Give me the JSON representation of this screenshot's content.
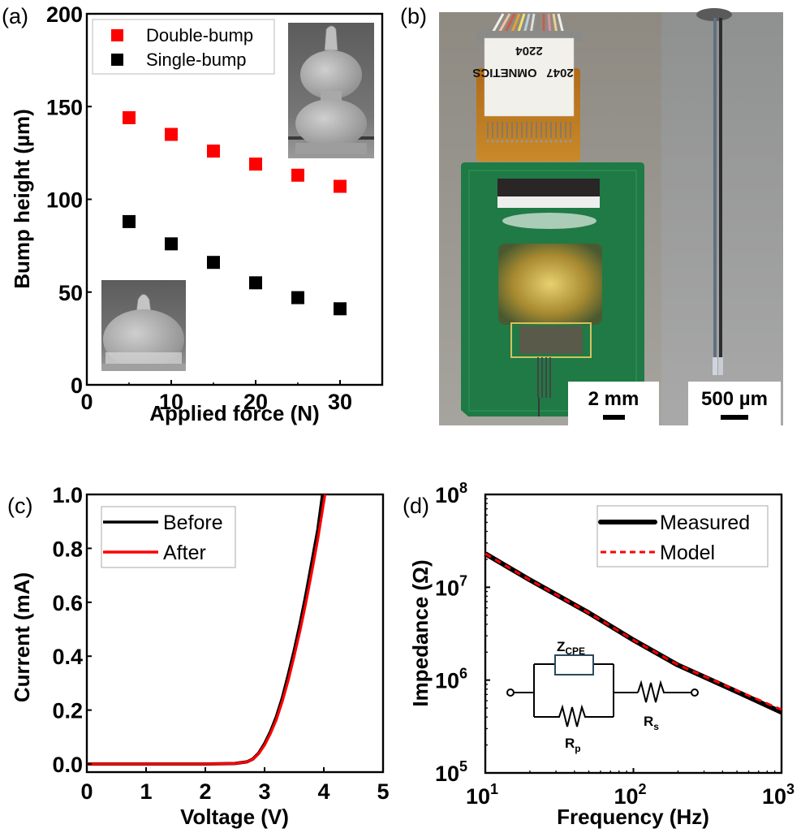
{
  "figure": {
    "panels": {
      "a": {
        "label": "(a)"
      },
      "b": {
        "label": "(b)"
      },
      "c": {
        "label": "(c)"
      },
      "d": {
        "label": "(d)"
      }
    }
  },
  "chart_data": [
    {
      "panel": "(a)",
      "type": "scatter",
      "title": "",
      "xlabel": "Applied force (N)",
      "ylabel": "Bump height (µm)",
      "xlim": [
        0,
        35
      ],
      "ylim": [
        0,
        200
      ],
      "xticks": [
        0,
        10,
        20,
        30
      ],
      "yticks": [
        0,
        50,
        100,
        150,
        200
      ],
      "grid": false,
      "legend_position": "upper left",
      "series": [
        {
          "name": "Double-bump",
          "color": "#ff0000",
          "marker": "square",
          "x": [
            5,
            10,
            15,
            20,
            25,
            30
          ],
          "y": [
            144,
            135,
            126,
            119,
            113,
            107
          ]
        },
        {
          "name": "Single-bump",
          "color": "#000000",
          "marker": "square",
          "x": [
            5,
            10,
            15,
            20,
            25,
            30
          ],
          "y": [
            88,
            76,
            66,
            55,
            47,
            41
          ]
        }
      ],
      "insets": [
        "SEM image of double-bump (upper right)",
        "SEM image of single-bump (lower left)"
      ]
    },
    {
      "panel": "(c)",
      "type": "line",
      "title": "",
      "xlabel": "Voltage (V)",
      "ylabel": "Current (mA)",
      "xlim": [
        0,
        5
      ],
      "ylim": [
        -0.03,
        1.0
      ],
      "xticks": [
        0,
        1,
        2,
        3,
        4,
        5
      ],
      "yticks": [
        "0.0",
        "0.2",
        "0.4",
        "0.6",
        "0.8",
        "1.0"
      ],
      "grid": false,
      "legend_position": "upper left",
      "series": [
        {
          "name": "Before",
          "color": "#000000",
          "x": [
            0,
            1,
            2,
            2.5,
            2.7,
            2.8,
            2.9,
            3.0,
            3.1,
            3.2,
            3.3,
            3.4,
            3.5,
            3.6,
            3.7,
            3.8,
            3.9,
            3.98
          ],
          "y": [
            0,
            0,
            0,
            0.002,
            0.008,
            0.018,
            0.04,
            0.075,
            0.12,
            0.175,
            0.245,
            0.33,
            0.42,
            0.52,
            0.63,
            0.75,
            0.87,
            1.0
          ]
        },
        {
          "name": "After",
          "color": "#ff0000",
          "x": [
            0,
            1,
            2,
            2.5,
            2.7,
            2.8,
            2.9,
            3.0,
            3.1,
            3.2,
            3.3,
            3.4,
            3.5,
            3.6,
            3.7,
            3.8,
            3.9,
            4.02
          ],
          "y": [
            0,
            0,
            0,
            0.002,
            0.008,
            0.017,
            0.038,
            0.07,
            0.113,
            0.165,
            0.232,
            0.31,
            0.4,
            0.495,
            0.6,
            0.715,
            0.835,
            1.0
          ]
        }
      ]
    },
    {
      "panel": "(d)",
      "type": "line",
      "title": "",
      "xlabel": "Frequency (Hz)",
      "ylabel": "Impedance (Ω)",
      "xscale": "log",
      "yscale": "log",
      "xlim": [
        10,
        1000
      ],
      "ylim": [
        100000,
        100000000
      ],
      "xticks": [
        "10^1",
        "10^2",
        "10^3"
      ],
      "yticks": [
        "10^5",
        "10^6",
        "10^7",
        "10^8"
      ],
      "grid": false,
      "legend_position": "upper right",
      "series": [
        {
          "name": "Measured",
          "color": "#000000",
          "style": "solid-thick",
          "x": [
            10,
            20,
            50,
            100,
            200,
            500,
            1000
          ],
          "y": [
            23000000,
            12000000,
            5300000,
            2700000,
            1450000,
            750000,
            450000
          ]
        },
        {
          "name": "Model",
          "color": "#ff0000",
          "style": "dashed",
          "x": [
            10,
            20,
            50,
            100,
            200,
            500,
            1000
          ],
          "y": [
            23000000,
            12000000,
            5300000,
            2700000,
            1460000,
            770000,
            480000
          ]
        }
      ],
      "inset_circuit": {
        "elements": [
          "Z_CPE",
          "R_p",
          "R_s"
        ],
        "labels": {
          "cpe_main": "Z",
          "cpe_sub": "CPE",
          "rp_main": "R",
          "rp_sub": "p",
          "rs_main": "R",
          "rs_sub": "s"
        },
        "topology": "(Z_CPE || R_p) in series with R_s"
      }
    }
  ],
  "photo": {
    "label_text_1": "OMNETICS",
    "label_text_2": "2047",
    "label_text_3": "2204",
    "scalebar_left": "2 mm",
    "scalebar_right": "500 µm"
  }
}
